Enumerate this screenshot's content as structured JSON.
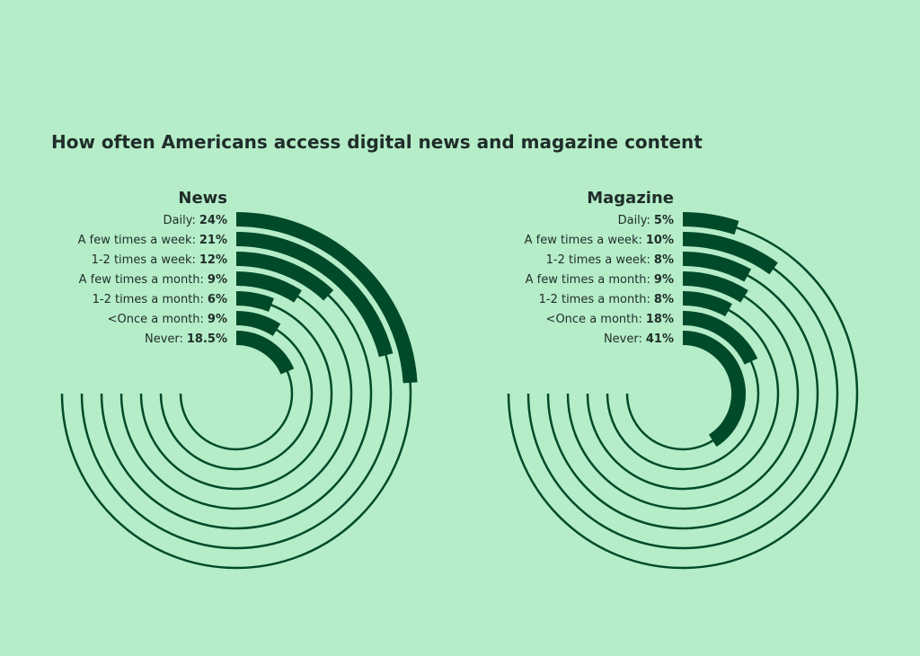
{
  "title": "How often Americans access digital news and magazine content",
  "chart_data": [
    {
      "type": "radial_bar",
      "title": "News",
      "color": "#004a2a",
      "vlim": [
        0,
        100
      ],
      "categories": [
        "Daily:",
        "A few times a week:",
        "1-2 times a week:",
        "A few times a month:",
        "1-2 times a month:",
        "<Once a month:",
        "Never:"
      ],
      "values": [
        24,
        21,
        12,
        9,
        6,
        9,
        18.5
      ],
      "value_labels": [
        "24%",
        "21%",
        "12%",
        "9%",
        "6%",
        "9%",
        "18.5%"
      ]
    },
    {
      "type": "radial_bar",
      "title": "Magazine",
      "color": "#004a2a",
      "vlim": [
        0,
        100
      ],
      "categories": [
        "Daily:",
        "A few times a week:",
        "1-2 times a week:",
        "A few times a month:",
        "1-2 times a month:",
        "<Once a month:",
        "Never:"
      ],
      "values": [
        5,
        10,
        8,
        9,
        8,
        18,
        41
      ],
      "value_labels": [
        "5%",
        "10%",
        "8%",
        "9%",
        "8%",
        "18%",
        "41%"
      ]
    }
  ]
}
